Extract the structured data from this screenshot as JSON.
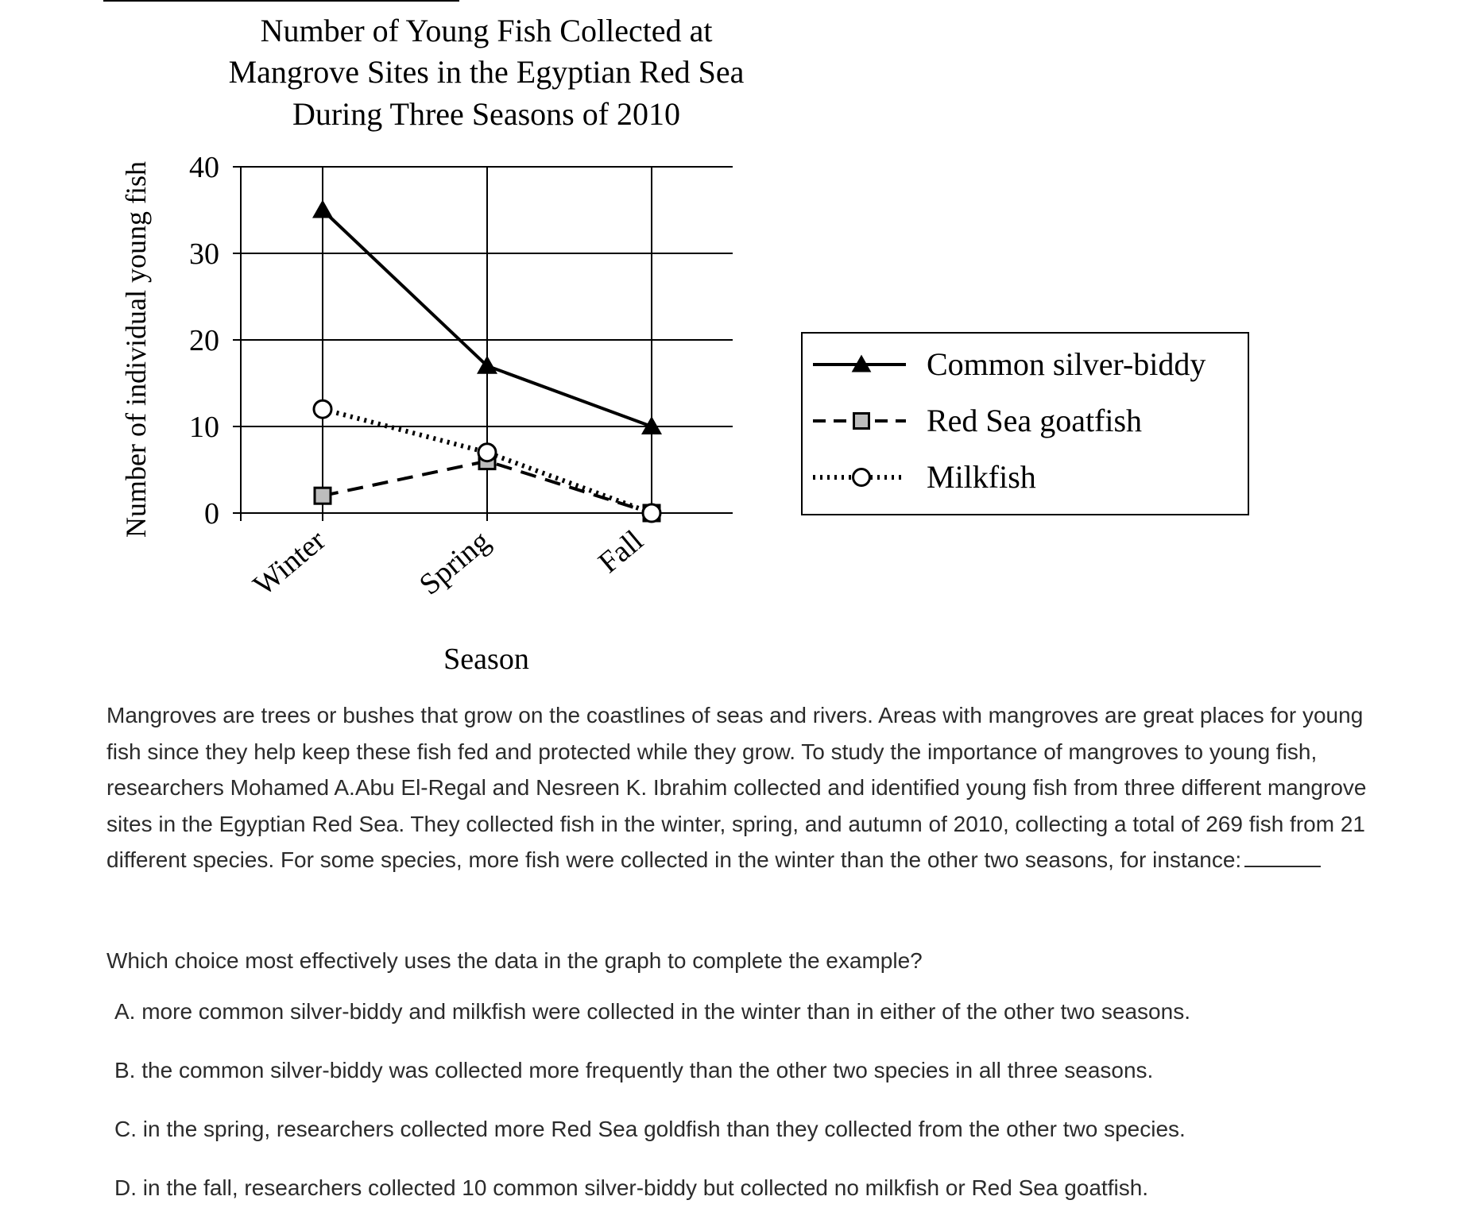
{
  "chart_data": {
    "type": "line",
    "title": [
      "Number of Young Fish Collected at",
      "Mangrove Sites in the Egyptian Red Sea",
      "During Three Seasons of 2010"
    ],
    "xlabel": "Season",
    "ylabel": "Number of individual young fish",
    "categories": [
      "Winter",
      "Spring",
      "Fall"
    ],
    "ylim": [
      0,
      40
    ],
    "yticks": [
      0,
      10,
      20,
      30,
      40
    ],
    "grid": true,
    "legend_position": "right",
    "series": [
      {
        "name": "Common silver-biddy",
        "values": [
          35,
          17,
          10
        ],
        "marker": "triangle",
        "line": "solid"
      },
      {
        "name": "Red Sea goatfish",
        "values": [
          2,
          6,
          0
        ],
        "marker": "square",
        "line": "dashed"
      },
      {
        "name": "Milkfish",
        "values": [
          12,
          7,
          0
        ],
        "marker": "circle",
        "line": "dotted"
      }
    ]
  },
  "passage": "Mangroves are trees or bushes that grow on the coastlines of seas and rivers. Areas with mangroves are great places for young fish since they help keep these fish fed and protected while they grow. To study the importance of mangroves to young fish, researchers Mohamed A.Abu El-Regal and Nesreen K. Ibrahim collected and identified young fish from three different mangrove sites in the Egyptian Red Sea. They collected fish in the winter, spring, and autumn of 2010, collecting a total of 269 fish from 21 different species. For some species, more fish were collected in the winter than the other two seasons, for instance:",
  "question": "Which choice most effectively uses the data in the graph to complete the example?",
  "choices": [
    "A. more common silver-biddy and milkfish were collected in the winter than in either of the other two seasons.",
    "B. the common silver-biddy was collected more frequently than the other two species in all three seasons.",
    "C. in the spring, researchers collected more Red Sea goldfish than they collected from the other two species.",
    "D. in the fall, researchers collected 10 common silver-biddy but collected no milkfish or Red Sea goatfish."
  ],
  "colors": {
    "ink": "#000000",
    "marker_fill_square": "#bdbdbd",
    "text": "#2b2b2b"
  }
}
